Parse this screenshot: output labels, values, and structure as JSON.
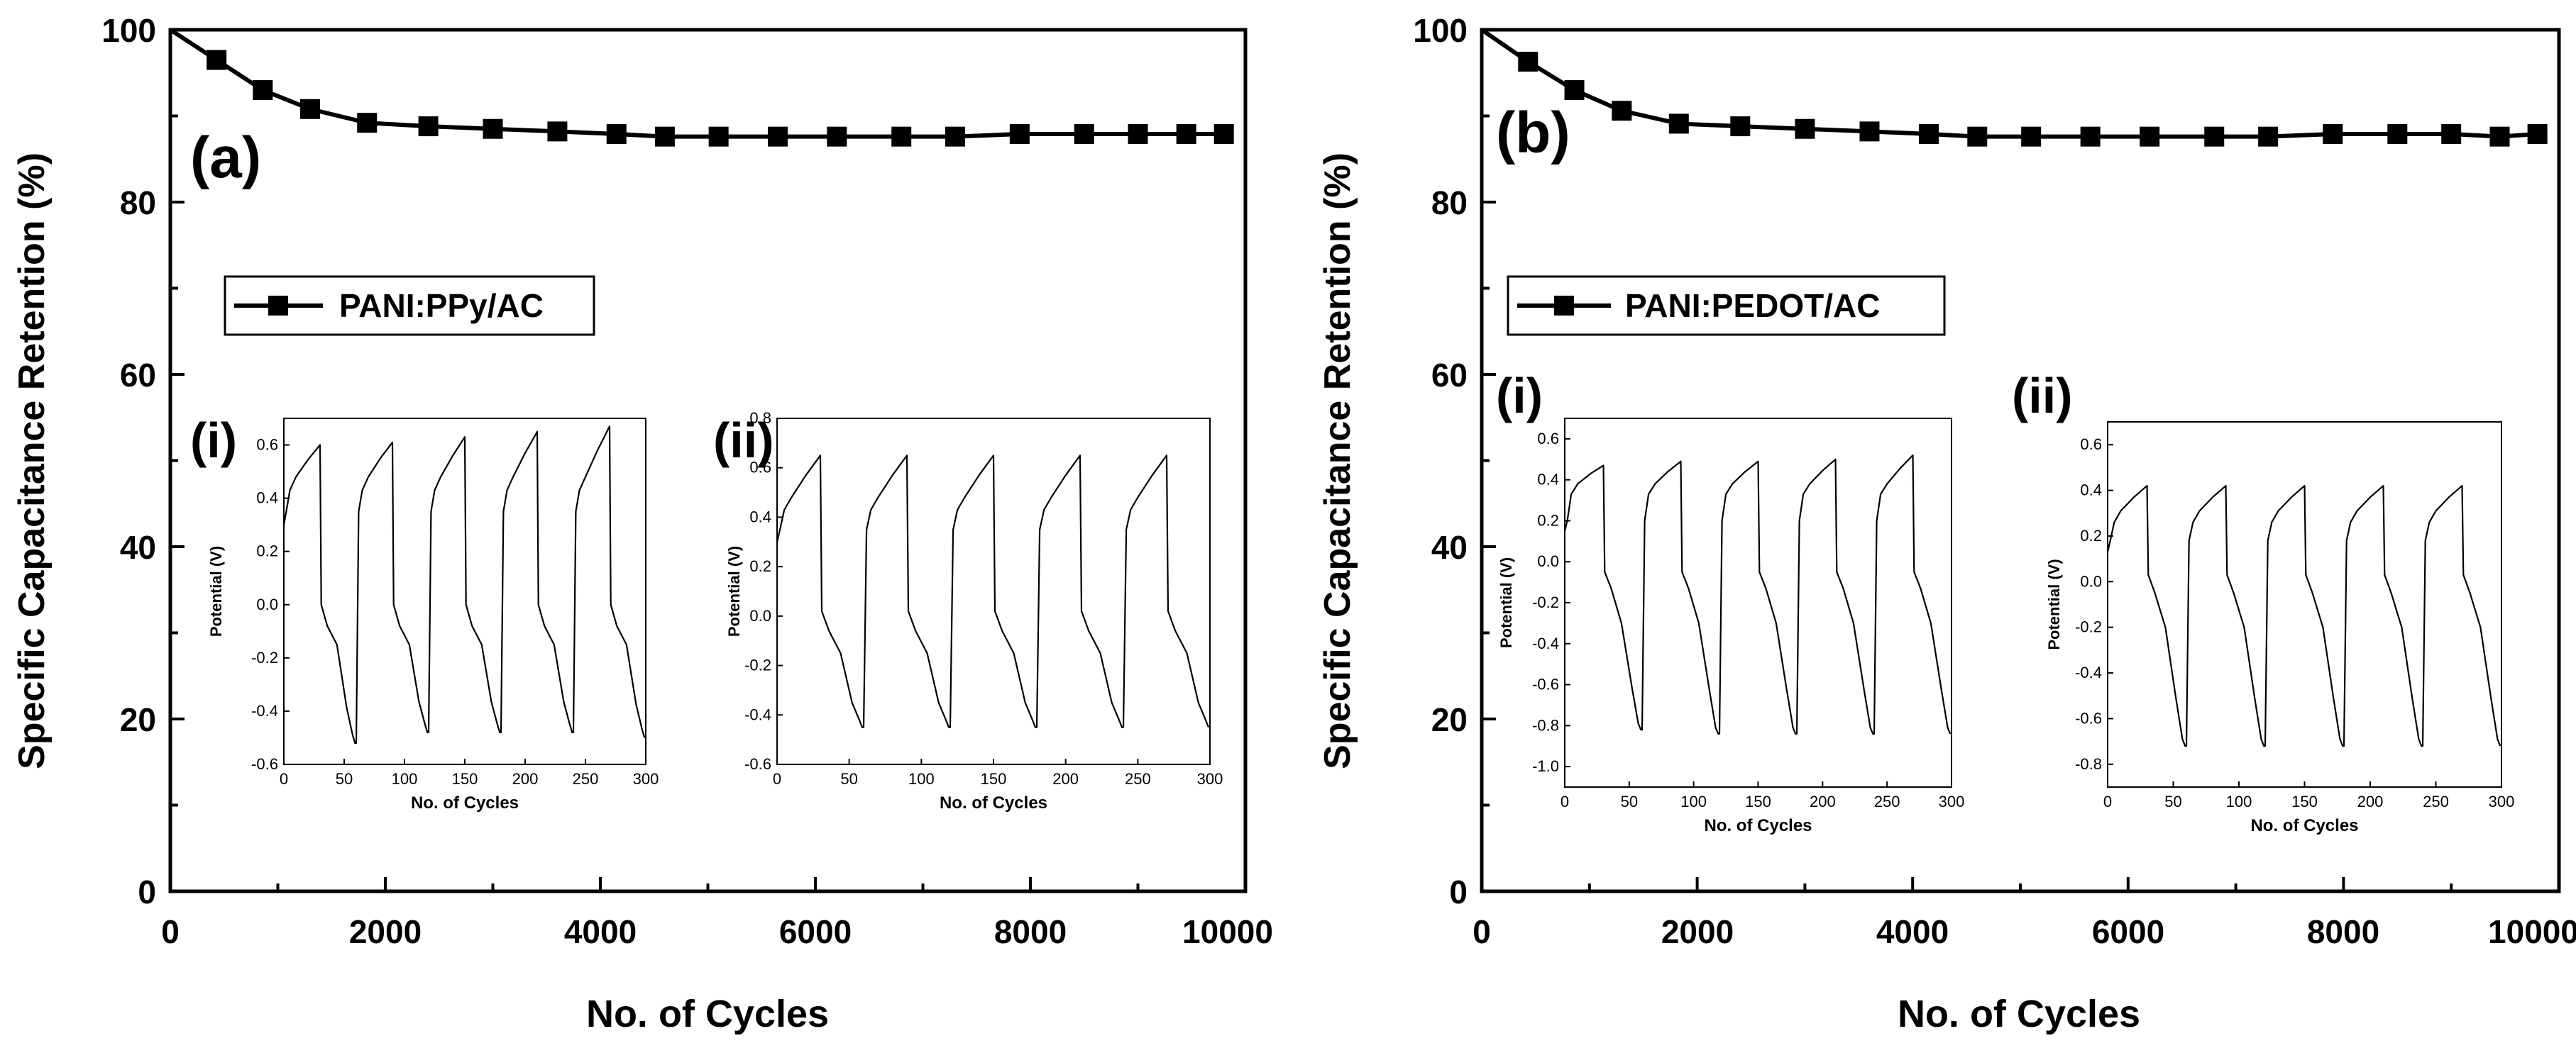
{
  "chart_data": [
    {
      "panel_label": "(a)",
      "type": "line",
      "xlabel": "No. of Cycles",
      "ylabel": "Specific Capacitance Retention (%)",
      "xlim": [
        0,
        10000
      ],
      "ylim": [
        0,
        100
      ],
      "xticks": [
        "0",
        "2000",
        "4000",
        "6000",
        "8000",
        "10000"
      ],
      "yticks": [
        "0",
        "20",
        "40",
        "60",
        "80",
        "100"
      ],
      "series": [
        {
          "name": "PANI:PPy/AC",
          "marker": "square",
          "x": [
            0,
            430,
            860,
            1300,
            1830,
            2400,
            3000,
            3600,
            4150,
            4600,
            5100,
            5650,
            6200,
            6800,
            7300,
            7900,
            8500,
            9000,
            9450,
            9800
          ],
          "values": [
            100,
            96.5,
            93,
            90.8,
            89.2,
            88.8,
            88.5,
            88.2,
            87.9,
            87.6,
            87.6,
            87.6,
            87.6,
            87.6,
            87.6,
            87.9,
            87.9,
            87.9,
            87.9,
            87.9
          ]
        }
      ],
      "insets": [
        {
          "label": "(i)",
          "xlabel": "No. of Cycles",
          "ylabel": "Potential (V)",
          "xlim": [
            0,
            300
          ],
          "ylim": [
            -0.6,
            0.7
          ],
          "xticks": [
            "0",
            "50",
            "100",
            "150",
            "200",
            "250",
            "300"
          ],
          "yticks": [
            "-0.6",
            "-0.4",
            "-0.2",
            "0.0",
            "0.2",
            "0.4",
            "0.6"
          ],
          "ytick_values": [
            -0.6,
            -0.4,
            -0.2,
            0.0,
            0.2,
            0.4,
            0.6
          ],
          "cycle_length": 60,
          "charge_time": 30,
          "start_value": 0.35,
          "pre_peak": 0.45,
          "peaks": [
            0.6,
            0.61,
            0.63,
            0.65,
            0.67
          ],
          "drop_value": 0.0,
          "mid_value": -0.15,
          "end_values": [
            -0.52,
            -0.48,
            -0.48,
            -0.48,
            -0.5
          ]
        },
        {
          "label": "(ii)",
          "xlabel": "No. of Cycles",
          "ylabel": "Potential (V)",
          "xlim": [
            0,
            300
          ],
          "ylim": [
            -0.6,
            0.8
          ],
          "xticks": [
            "0",
            "50",
            "100",
            "150",
            "200",
            "250",
            "300"
          ],
          "yticks": [
            "-0.6",
            "-0.4",
            "-0.2",
            "0.0",
            "0.2",
            "0.4",
            "0.6",
            "0.8"
          ],
          "ytick_values": [
            -0.6,
            -0.4,
            -0.2,
            0.0,
            0.2,
            0.4,
            0.6,
            0.8
          ],
          "cycle_length": 60,
          "charge_time": 30,
          "start_value": 0.35,
          "pre_peak": 0.45,
          "peaks": [
            0.65,
            0.65,
            0.65,
            0.65,
            0.65
          ],
          "drop_value": 0.02,
          "mid_value": -0.15,
          "end_values": [
            -0.45,
            -0.45,
            -0.45,
            -0.45,
            -0.45
          ]
        }
      ]
    },
    {
      "panel_label": "(b)",
      "type": "line",
      "xlabel": "No. of Cycles",
      "ylabel": "Specific Capacitance Retention (%)",
      "xlim": [
        0,
        10000
      ],
      "ylim": [
        0,
        100
      ],
      "xticks": [
        "0",
        "2000",
        "4000",
        "6000",
        "8000",
        "10000"
      ],
      "yticks": [
        "0",
        "20",
        "40",
        "60",
        "80",
        "100"
      ],
      "series": [
        {
          "name": "PANI:PEDOT/AC",
          "marker": "square",
          "x": [
            0,
            430,
            860,
            1300,
            1830,
            2400,
            3000,
            3600,
            4150,
            4600,
            5100,
            5650,
            6200,
            6800,
            7300,
            7900,
            8500,
            9000,
            9450,
            9800
          ],
          "values": [
            100,
            96.3,
            93,
            90.6,
            89.1,
            88.8,
            88.5,
            88.2,
            87.9,
            87.6,
            87.6,
            87.6,
            87.6,
            87.6,
            87.6,
            87.9,
            87.9,
            87.9,
            87.6,
            87.9
          ]
        }
      ],
      "insets": [
        {
          "label": "(i)",
          "xlabel": "No. of Cycles",
          "ylabel": "Potential (V)",
          "xlim": [
            0,
            300
          ],
          "ylim": [
            -1.1,
            0.7
          ],
          "xticks": [
            "0",
            "50",
            "100",
            "150",
            "200",
            "250",
            "300"
          ],
          "yticks": [
            "-1.0",
            "-0.8",
            "-0.6",
            "-0.4",
            "-0.2",
            "0.0",
            "0.2",
            "0.4",
            "0.6"
          ],
          "ytick_values": [
            -1.0,
            -0.8,
            -0.6,
            -0.4,
            -0.2,
            0.0,
            0.2,
            0.4,
            0.6
          ],
          "cycle_length": 60,
          "charge_time": 30,
          "start_value": 0.2,
          "pre_peak": 0.35,
          "peaks": [
            0.47,
            0.49,
            0.49,
            0.5,
            0.52
          ],
          "drop_value": -0.05,
          "mid_value": -0.3,
          "end_values": [
            -0.82,
            -0.84,
            -0.84,
            -0.84,
            -0.84
          ]
        },
        {
          "label": "(ii)",
          "xlabel": "No. of Cycles",
          "ylabel": "Potential (V)",
          "xlim": [
            0,
            300
          ],
          "ylim": [
            -0.9,
            0.7
          ],
          "xticks": [
            "0",
            "50",
            "100",
            "150",
            "200",
            "250",
            "300"
          ],
          "yticks": [
            "-0.8",
            "-0.6",
            "-0.4",
            "-0.2",
            "0.0",
            "0.2",
            "0.4",
            "0.6"
          ],
          "ytick_values": [
            -0.8,
            -0.6,
            -0.4,
            -0.2,
            0.0,
            0.2,
            0.4,
            0.6
          ],
          "cycle_length": 60,
          "charge_time": 30,
          "start_value": 0.18,
          "pre_peak": 0.28,
          "peaks": [
            0.42,
            0.42,
            0.42,
            0.42,
            0.42
          ],
          "drop_value": 0.03,
          "mid_value": -0.2,
          "end_values": [
            -0.72,
            -0.72,
            -0.72,
            -0.72,
            -0.72
          ]
        }
      ]
    }
  ]
}
